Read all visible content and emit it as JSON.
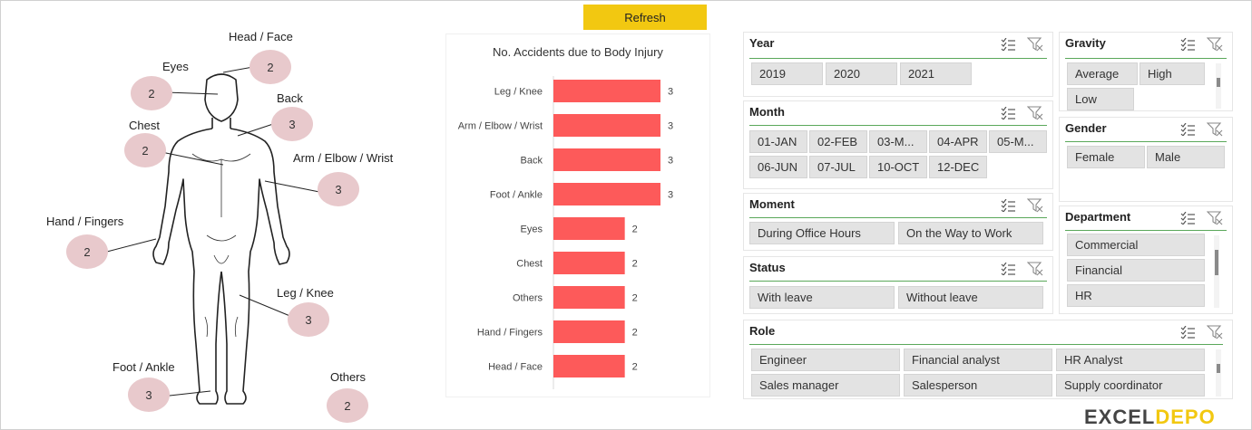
{
  "refresh_label": "Refresh",
  "body_parts": [
    {
      "label": "Head / Face",
      "count": "2"
    },
    {
      "label": "Eyes",
      "count": "2"
    },
    {
      "label": "Back",
      "count": "3"
    },
    {
      "label": "Chest",
      "count": "2"
    },
    {
      "label": "Arm / Elbow / Wrist",
      "count": "3"
    },
    {
      "label": "Hand / Fingers",
      "count": "2"
    },
    {
      "label": "Leg / Knee",
      "count": "3"
    },
    {
      "label": "Foot / Ankle",
      "count": "3"
    },
    {
      "label": "Others",
      "count": "2"
    }
  ],
  "colors": {
    "bar": "#fd5a5a",
    "bubble": "#e8c9cc",
    "refresh": "#f2c811",
    "slicer_line": "#5aa85a"
  },
  "chart_data": {
    "type": "bar",
    "orientation": "horizontal",
    "title": "No. Accidents due to Body Injury",
    "categories": [
      "Leg / Knee",
      "Arm / Elbow / Wrist",
      "Back",
      "Foot / Ankle",
      "Eyes",
      "Chest",
      "Others",
      "Hand / Fingers",
      "Head / Face"
    ],
    "values": [
      3,
      3,
      3,
      3,
      2,
      2,
      2,
      2,
      2
    ],
    "data_labels": true,
    "xlim": [
      0,
      3
    ],
    "grid": false
  },
  "slicers": {
    "year": {
      "title": "Year",
      "items": [
        "2019",
        "2020",
        "2021"
      ]
    },
    "month": {
      "title": "Month",
      "items": [
        "01-JAN",
        "02-FEB",
        "03-M...",
        "04-APR",
        "05-M...",
        "06-JUN",
        "07-JUL",
        "10-OCT",
        "12-DEC"
      ]
    },
    "moment": {
      "title": "Moment",
      "items": [
        "During Office Hours",
        "On the Way to Work"
      ]
    },
    "status": {
      "title": "Status",
      "items": [
        "With leave",
        "Without leave"
      ]
    },
    "role": {
      "title": "Role",
      "items": [
        "Engineer",
        "Financial analyst",
        "HR Analyst",
        "Sales manager",
        "Salesperson",
        "Supply coordinator"
      ]
    },
    "gravity": {
      "title": "Gravity",
      "items": [
        "Average",
        "High",
        "Low"
      ]
    },
    "gender": {
      "title": "Gender",
      "items": [
        "Female",
        "Male"
      ]
    },
    "department": {
      "title": "Department",
      "items": [
        "Commercial",
        "Financial",
        "HR"
      ]
    }
  },
  "icons": {
    "multiselect": "multi-select-icon",
    "clear_filter": "clear-filter-icon"
  },
  "logo": {
    "text_main": "EXCEL",
    "text_accent": "DEPO"
  }
}
